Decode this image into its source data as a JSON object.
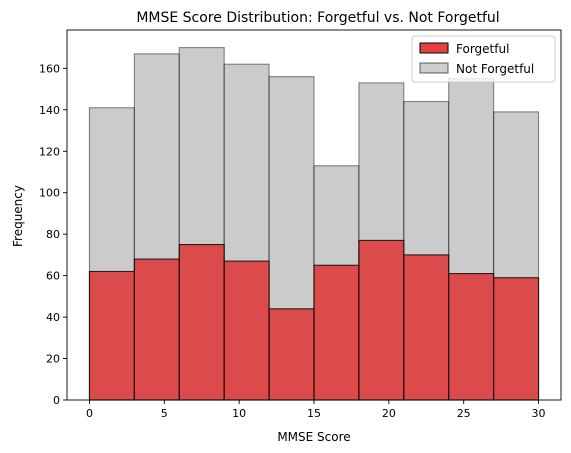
{
  "chart_data": {
    "type": "bar",
    "title": "MMSE Score Distribution: Forgetful vs. Not Forgetful",
    "xlabel": "MMSE Score",
    "ylabel": "Frequency",
    "xlim": [
      -1.5,
      31.5
    ],
    "ylim": [
      0,
      178.5
    ],
    "xticks": [
      0,
      5,
      10,
      15,
      20,
      25,
      30
    ],
    "yticks": [
      0,
      20,
      40,
      60,
      80,
      100,
      120,
      140,
      160
    ],
    "bin_edges": [
      0,
      3,
      6,
      9,
      12,
      15,
      18,
      21,
      24,
      27,
      30
    ],
    "grid": false,
    "legend_position": "top-right",
    "series": [
      {
        "name": "Not Forgetful",
        "color": "#bfbfbf",
        "values": [
          141,
          167,
          170,
          162,
          156,
          113,
          153,
          144,
          155,
          139
        ]
      },
      {
        "name": "Forgetful",
        "color": "#e02020",
        "values": [
          62,
          68,
          75,
          67,
          44,
          65,
          77,
          70,
          61,
          59
        ]
      }
    ],
    "legend": [
      {
        "name": "Forgetful",
        "color": "#e02020"
      },
      {
        "name": "Not Forgetful",
        "color": "#bfbfbf"
      }
    ]
  }
}
